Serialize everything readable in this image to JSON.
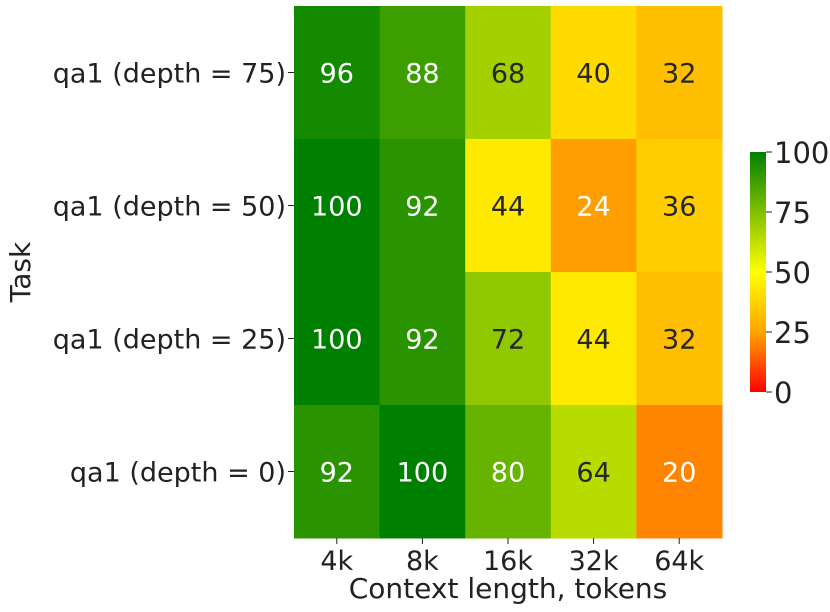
{
  "chart_data": {
    "type": "heatmap",
    "xlabel": "Context length, tokens",
    "ylabel": "Task",
    "x_categories": [
      "4k",
      "8k",
      "16k",
      "32k",
      "64k"
    ],
    "y_categories": [
      "qa1 (depth = 75)",
      "qa1 (depth = 50)",
      "qa1 (depth = 25)",
      "qa1 (depth = 0)"
    ],
    "values": [
      [
        96,
        88,
        68,
        40,
        32
      ],
      [
        100,
        92,
        44,
        24,
        36
      ],
      [
        100,
        92,
        72,
        44,
        32
      ],
      [
        92,
        100,
        80,
        64,
        20
      ]
    ],
    "colorbar": {
      "min": 0,
      "max": 100,
      "ticks": [
        0,
        25,
        50,
        75,
        100
      ],
      "colors": [
        "#ff0000",
        "#ffa500",
        "#ffff00",
        "#008000"
      ]
    }
  }
}
